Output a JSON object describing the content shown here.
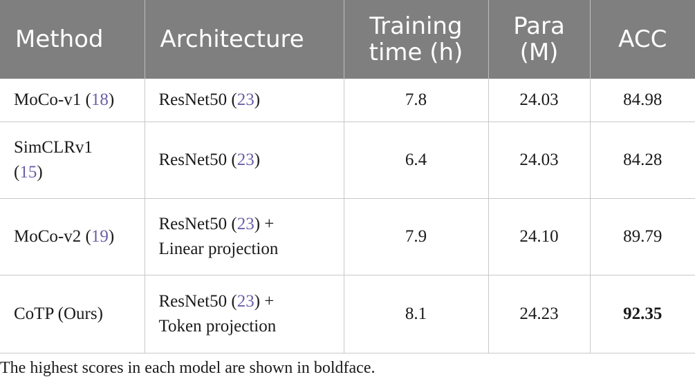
{
  "table": {
    "headers": [
      "Method",
      "Architecture",
      "Training time (h)",
      "Para (M)",
      "ACC"
    ],
    "rows": [
      {
        "method": "MoCo-v1",
        "method_ref": "18",
        "arch_line1": "ResNet50",
        "arch_ref": "23",
        "arch_suffix": "",
        "arch_line2": "",
        "time": "7.8",
        "para": "24.03",
        "acc": "84.98"
      },
      {
        "method": "SimCLRv1",
        "method_ref": "15",
        "arch_line1": "ResNet50",
        "arch_ref": "23",
        "arch_suffix": "",
        "arch_line2": "",
        "time": "6.4",
        "para": "24.03",
        "acc": "84.28"
      },
      {
        "method": "MoCo-v2",
        "method_ref": "19",
        "arch_line1": "ResNet50",
        "arch_ref": "23",
        "arch_suffix": " +",
        "arch_line2": "Linear projection",
        "time": "7.9",
        "para": "24.10",
        "acc": "89.79"
      },
      {
        "method": "CoTP (Ours)",
        "method_ref": "",
        "arch_line1": "ResNet50",
        "arch_ref": "23",
        "arch_suffix": " +",
        "arch_line2": "Token projection",
        "time": "8.1",
        "para": "24.23",
        "acc": "92.35"
      }
    ]
  },
  "footnote": "The highest scores in each model are shown in boldface.",
  "colors": {
    "header_bg": "#7f7f7f",
    "header_text": "#ffffff",
    "citation": "#6b5ea8"
  }
}
